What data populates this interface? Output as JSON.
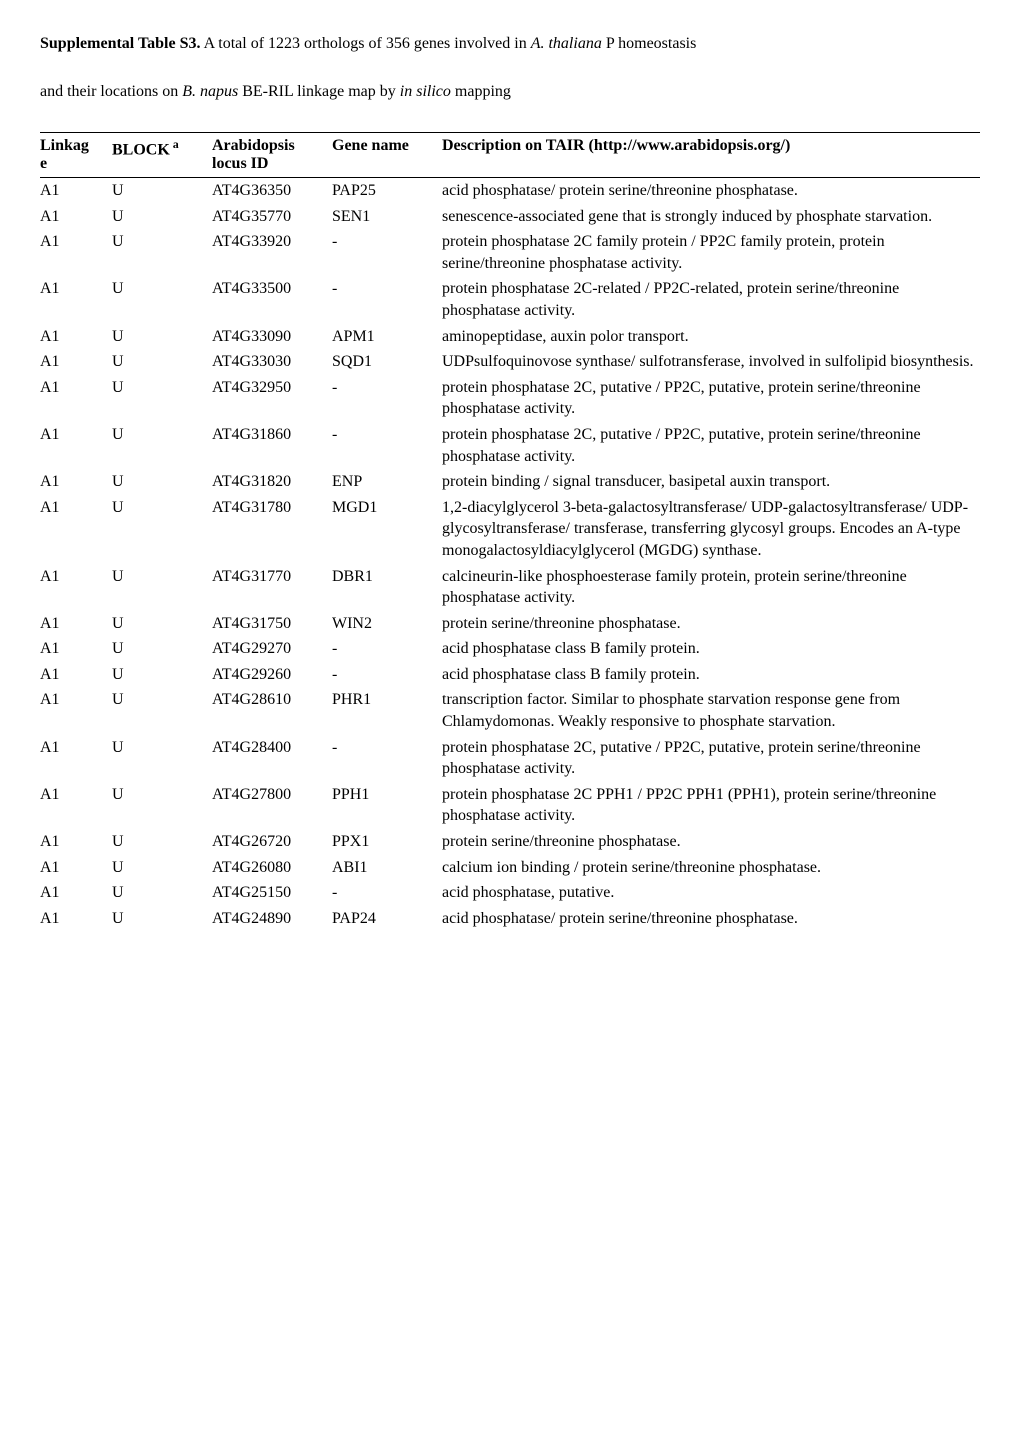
{
  "title": {
    "label_bold": "Supplemental Table S3.",
    "line1_a": " A total of 1223 orthologs of 356 genes involved in ",
    "line1_italic": "A. thaliana",
    "line1_b": " P homeostasis",
    "line2_a": "and their locations on ",
    "line2_italic": "B. napus",
    "line2_b": " BE-RIL linkage map by ",
    "line2_italic2": "in silico",
    "line2_c": " mapping"
  },
  "headers": {
    "linkage_top": "Linkag",
    "linkage_bot": "e",
    "block": "BLOCK",
    "block_sup": " a",
    "arabidopsis_top": "Arabidopsis",
    "arabidopsis_bot": "locus ID",
    "gene": "Gene name",
    "desc": "Description on TAIR (http://www.arabidopsis.org/)"
  },
  "rows": [
    {
      "linkage": "A1",
      "block": "U",
      "locus": "AT4G36350",
      "gene": "PAP25",
      "desc": "acid phosphatase/ protein serine/threonine phosphatase."
    },
    {
      "linkage": "A1",
      "block": "U",
      "locus": "AT4G35770",
      "gene": "SEN1",
      "desc": "senescence-associated gene that is strongly induced by phosphate starvation."
    },
    {
      "linkage": "A1",
      "block": "U",
      "locus": "AT4G33920",
      "gene": "-",
      "desc": "protein phosphatase 2C family protein / PP2C family protein, protein serine/threonine phosphatase activity."
    },
    {
      "linkage": "A1",
      "block": "U",
      "locus": "AT4G33500",
      "gene": "-",
      "desc": "protein phosphatase 2C-related / PP2C-related, protein serine/threonine phosphatase activity."
    },
    {
      "linkage": "A1",
      "block": "U",
      "locus": "AT4G33090",
      "gene": "APM1",
      "desc": "aminopeptidase, auxin polor transport."
    },
    {
      "linkage": "A1",
      "block": "U",
      "locus": "AT4G33030",
      "gene": "SQD1",
      "desc": "UDPsulfoquinovose synthase/ sulfotransferase, involved in sulfolipid biosynthesis."
    },
    {
      "linkage": "A1",
      "block": "U",
      "locus": "AT4G32950",
      "gene": "-",
      "desc": "protein phosphatase 2C, putative / PP2C, putative, protein serine/threonine phosphatase activity."
    },
    {
      "linkage": "A1",
      "block": "U",
      "locus": "AT4G31860",
      "gene": "-",
      "desc": "protein phosphatase 2C, putative / PP2C, putative, protein serine/threonine phosphatase activity."
    },
    {
      "linkage": "A1",
      "block": "U",
      "locus": "AT4G31820",
      "gene": "ENP",
      "desc": "protein binding / signal transducer, basipetal auxin transport."
    },
    {
      "linkage": "A1",
      "block": "U",
      "locus": "AT4G31780",
      "gene": "MGD1",
      "desc": "1,2-diacylglycerol 3-beta-galactosyltransferase/ UDP-galactosyltransferase/ UDP-glycosyltransferase/ transferase, transferring glycosyl groups. Encodes an A-type monogalactosyldiacylglycerol (MGDG) synthase."
    },
    {
      "linkage": "A1",
      "block": "U",
      "locus": "AT4G31770",
      "gene": "DBR1",
      "desc": "calcineurin-like phosphoesterase family protein, protein serine/threonine phosphatase activity."
    },
    {
      "linkage": "A1",
      "block": "U",
      "locus": "AT4G31750",
      "gene": "WIN2",
      "desc": "protein serine/threonine phosphatase."
    },
    {
      "linkage": "A1",
      "block": "U",
      "locus": "AT4G29270",
      "gene": "-",
      "desc": "acid phosphatase class B family protein."
    },
    {
      "linkage": "A1",
      "block": "U",
      "locus": "AT4G29260",
      "gene": "-",
      "desc": "acid phosphatase class B family protein."
    },
    {
      "linkage": "A1",
      "block": "U",
      "locus": "AT4G28610",
      "gene": "PHR1",
      "desc": "transcription factor. Similar to phosphate starvation response gene from Chlamydomonas. Weakly responsive to phosphate starvation."
    },
    {
      "linkage": "A1",
      "block": "U",
      "locus": "AT4G28400",
      "gene": "-",
      "desc": "protein phosphatase 2C, putative / PP2C, putative, protein serine/threonine phosphatase activity."
    },
    {
      "linkage": "A1",
      "block": "U",
      "locus": "AT4G27800",
      "gene": "PPH1",
      "desc": "protein phosphatase 2C PPH1 / PP2C PPH1 (PPH1), protein serine/threonine phosphatase activity."
    },
    {
      "linkage": "A1",
      "block": "U",
      "locus": "AT4G26720",
      "gene": "PPX1",
      "desc": "protein serine/threonine phosphatase."
    },
    {
      "linkage": "A1",
      "block": "U",
      "locus": "AT4G26080",
      "gene": "ABI1",
      "desc": "calcium ion binding / protein serine/threonine phosphatase."
    },
    {
      "linkage": "A1",
      "block": "U",
      "locus": "AT4G25150",
      "gene": "-",
      "desc": "acid phosphatase, putative."
    },
    {
      "linkage": "A1",
      "block": "U",
      "locus": "AT4G24890",
      "gene": "PAP24",
      "desc": "acid phosphatase/ protein serine/threonine phosphatase."
    }
  ]
}
